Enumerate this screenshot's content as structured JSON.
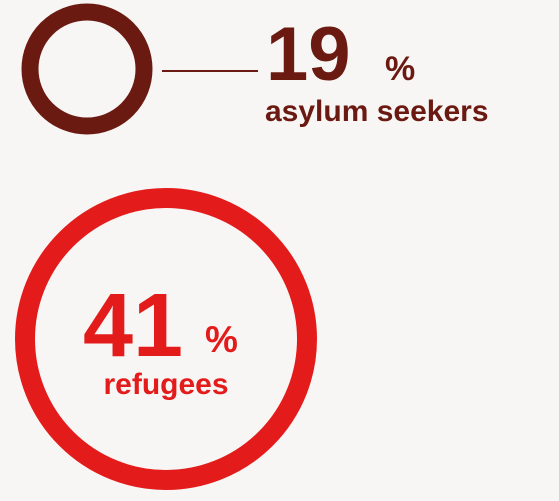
{
  "chart_data": {
    "type": "bubble",
    "percent_symbol": "%",
    "items": [
      {
        "label": "asylum seekers",
        "value": 19,
        "color": "#6b1a12"
      },
      {
        "label": "refugees",
        "value": 41,
        "color": "#e31b1b"
      }
    ]
  }
}
